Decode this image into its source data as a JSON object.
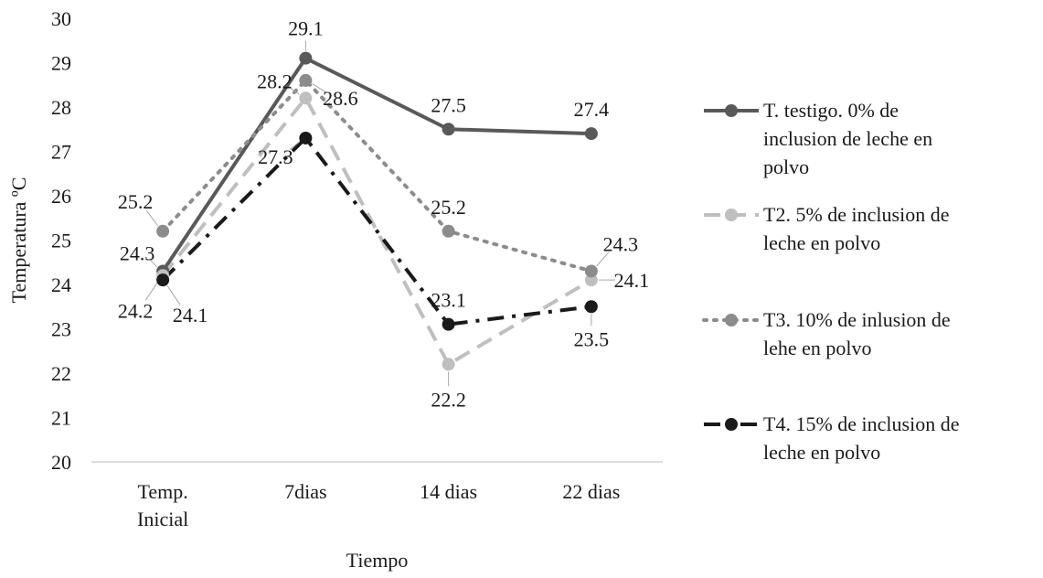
{
  "chart_data": {
    "type": "line",
    "categories": [
      "Temp. Inicial",
      "7dias",
      "14 dias",
      "22 dias"
    ],
    "xlabel": "Tiempo",
    "ylabel": "Temperatura ºC",
    "ylim": [
      20,
      30
    ],
    "yticks": [
      20,
      21,
      22,
      23,
      24,
      25,
      26,
      27,
      28,
      29,
      30
    ],
    "grid": false,
    "legend_position": "right",
    "series": [
      {
        "name": "T. testigo. 0% de inclusion de leche en polvo",
        "legend_lines": [
          "T. testigo. 0% de",
          "inclusion de leche en",
          "polvo"
        ],
        "values": [
          24.3,
          29.1,
          27.5,
          27.4
        ],
        "labels": [
          "24.3",
          "29.1",
          "27.5",
          "27.4"
        ],
        "color": "#595959",
        "line_style": "solid"
      },
      {
        "name": "T2. 5% de inclusion de leche en polvo",
        "legend_lines": [
          "T2. 5% de inclusion de",
          "leche en polvo"
        ],
        "values": [
          24.2,
          28.2,
          22.2,
          24.1
        ],
        "labels": [
          "24.2",
          "28.2",
          "22.2",
          "24.1"
        ],
        "color": "#bfbfbf",
        "line_style": "dash"
      },
      {
        "name": "T3. 10% de inlusion de lehe en polvo",
        "legend_lines": [
          "T3. 10% de inlusion de",
          "lehe en polvo"
        ],
        "values": [
          25.2,
          28.6,
          25.2,
          24.3
        ],
        "labels": [
          "25.2",
          "28.6",
          "25.2",
          "24.3"
        ],
        "color": "#8c8c8c",
        "line_style": "dot"
      },
      {
        "name": "T4. 15% de inclusion de leche en polvo",
        "legend_lines": [
          "T4. 15% de inclusion de",
          "leche en polvo"
        ],
        "values": [
          24.1,
          27.3,
          23.1,
          23.5
        ],
        "labels": [
          "24.1",
          "27.3",
          "23.1",
          "23.5"
        ],
        "color": "#1a1a1a",
        "line_style": "dashdot"
      }
    ]
  }
}
